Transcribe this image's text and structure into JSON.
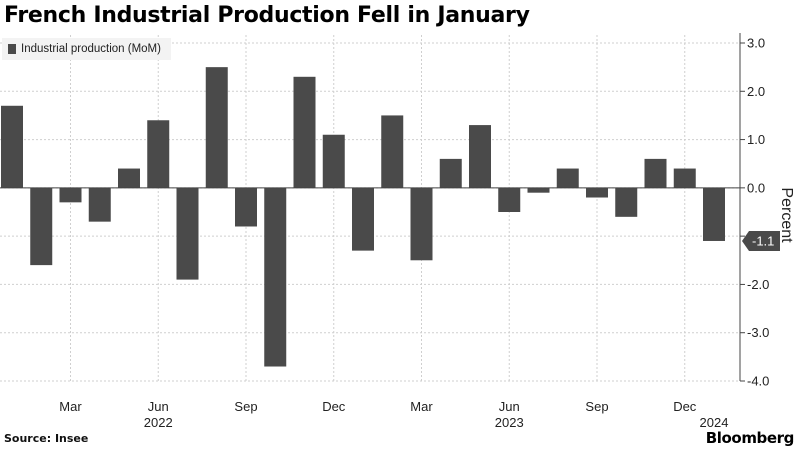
{
  "title": "French Industrial Production Fell in January",
  "source": "Source: Insee",
  "brand": "Bloomberg",
  "colors": {
    "bar": "#4a4a4a",
    "grid": "#cfcfcf",
    "axis": "#444444"
  },
  "chart_data": {
    "type": "bar",
    "title": "French Industrial Production Fell in January",
    "ylabel": "Percent",
    "ylim": [
      -4.0,
      3.0
    ],
    "yticks": [
      "3.0",
      "2.0",
      "1.0",
      "0.0",
      "-1.0",
      "-2.0",
      "-3.0",
      "-4.0"
    ],
    "y_axis_side": "right",
    "grid": true,
    "legend_position": "top-left",
    "series": [
      {
        "name": "Industrial production (MoM)",
        "categories": [
          "2022-01",
          "2022-02",
          "2022-03",
          "2022-04",
          "2022-05",
          "2022-06",
          "2022-07",
          "2022-08",
          "2022-09",
          "2022-10",
          "2022-11",
          "2022-12",
          "2023-01",
          "2023-02",
          "2023-03",
          "2023-04",
          "2023-05",
          "2023-06",
          "2023-07",
          "2023-08",
          "2023-09",
          "2023-10",
          "2023-11",
          "2023-12",
          "2024-01"
        ],
        "values": [
          1.7,
          -1.6,
          -0.3,
          -0.7,
          0.4,
          1.4,
          -1.9,
          2.5,
          -0.8,
          -3.7,
          2.3,
          1.1,
          -1.3,
          1.5,
          -1.5,
          0.6,
          1.3,
          -0.5,
          -0.1,
          0.4,
          -0.2,
          -0.6,
          0.6,
          0.4,
          -1.1
        ]
      }
    ],
    "x_tick_labels": [
      {
        "category": "2022-03",
        "label": "Mar"
      },
      {
        "category": "2022-06",
        "label": "Jun"
      },
      {
        "category": "2022-09",
        "label": "Sep"
      },
      {
        "category": "2022-12",
        "label": "Dec"
      },
      {
        "category": "2023-03",
        "label": "Mar"
      },
      {
        "category": "2023-06",
        "label": "Jun"
      },
      {
        "category": "2023-09",
        "label": "Sep"
      },
      {
        "category": "2023-12",
        "label": "Dec"
      }
    ],
    "year_labels": [
      {
        "category": "2022-06",
        "label": "2022"
      },
      {
        "category": "2023-06",
        "label": "2023"
      },
      {
        "category": "2024-01",
        "label": "2024"
      }
    ],
    "last_value_label": "-1.1"
  }
}
